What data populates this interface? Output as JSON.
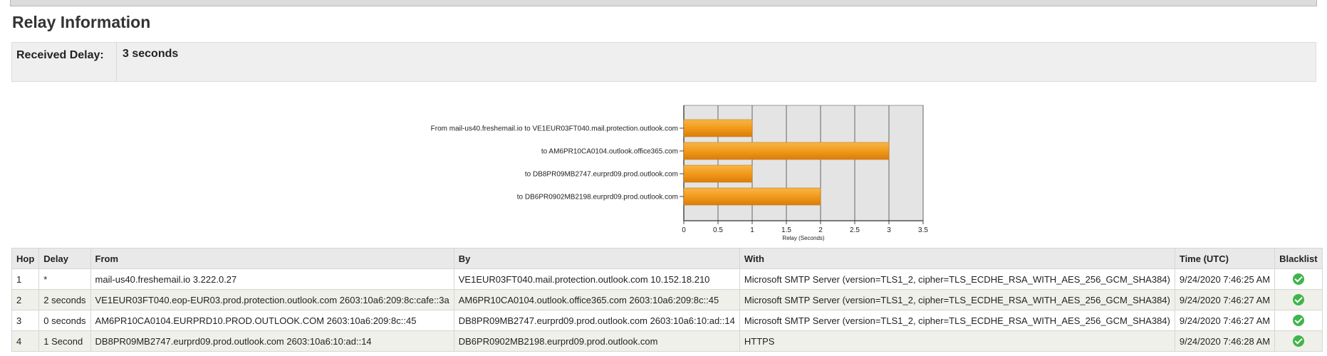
{
  "section_title": "Relay Information",
  "summary": {
    "label": "Received Delay:",
    "value": "3 seconds"
  },
  "chart_data": {
    "type": "bar",
    "orientation": "horizontal",
    "categories": [
      "From mail-us40.freshemail.io to VE1EUR03FT040.mail.protection.outlook.com",
      "to AM6PR10CA0104.outlook.office365.com",
      "to DB8PR09MB2747.eurprd09.prod.outlook.com",
      "to DB6PR0902MB2198.eurprd09.prod.outlook.com"
    ],
    "values": [
      1,
      3,
      1,
      2
    ],
    "xlabel": "Relay (Seconds)",
    "xlim": [
      0,
      3.5
    ],
    "ticks": [
      "0",
      "0.5",
      "1",
      "1.5",
      "2",
      "2.5",
      "3",
      "3.5"
    ],
    "grid": true,
    "bar_color": "#f29a1a"
  },
  "table": {
    "headers": [
      "Hop",
      "Delay",
      "From",
      "By",
      "With",
      "Time (UTC)",
      "Blacklist"
    ],
    "rows": [
      {
        "hop": "1",
        "delay": "*",
        "from": "mail-us40.freshemail.io 3.222.0.27",
        "by": "VE1EUR03FT040.mail.protection.outlook.com 10.152.18.210",
        "with": "Microsoft SMTP Server (version=TLS1_2, cipher=TLS_ECDHE_RSA_WITH_AES_256_GCM_SHA384)",
        "time": "9/24/2020 7:46:25 AM",
        "blacklist_icon": "check-circle-icon"
      },
      {
        "hop": "2",
        "delay": "2 seconds",
        "from": "VE1EUR03FT040.eop-EUR03.prod.protection.outlook.com 2603:10a6:209:8c:cafe::3a",
        "by": "AM6PR10CA0104.outlook.office365.com 2603:10a6:209:8c::45",
        "with": "Microsoft SMTP Server (version=TLS1_2, cipher=TLS_ECDHE_RSA_WITH_AES_256_GCM_SHA384)",
        "time": "9/24/2020 7:46:27 AM",
        "blacklist_icon": "check-circle-icon"
      },
      {
        "hop": "3",
        "delay": "0 seconds",
        "from": "AM6PR10CA0104.EURPRD10.PROD.OUTLOOK.COM 2603:10a6:209:8c::45",
        "by": "DB8PR09MB2747.eurprd09.prod.outlook.com 2603:10a6:10:ad::14",
        "with": "Microsoft SMTP Server (version=TLS1_2, cipher=TLS_ECDHE_RSA_WITH_AES_256_GCM_SHA384)",
        "time": "9/24/2020 7:46:27 AM",
        "blacklist_icon": "check-circle-icon"
      },
      {
        "hop": "4",
        "delay": "1 Second",
        "from": "DB8PR09MB2747.eurprd09.prod.outlook.com 2603:10a6:10:ad::14",
        "by": "DB6PR0902MB2198.eurprd09.prod.outlook.com",
        "with": "HTTPS",
        "time": "9/24/2020 7:46:28 AM",
        "blacklist_icon": "check-circle-icon"
      }
    ]
  }
}
